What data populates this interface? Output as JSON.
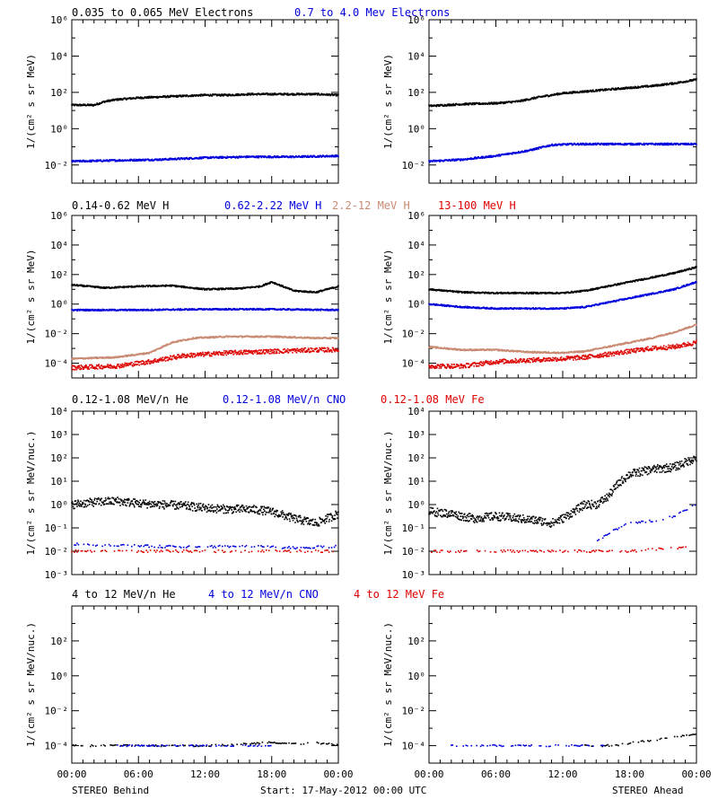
{
  "footer": {
    "left": "STEREO Behind",
    "center": "Start: 17-May-2012 00:00 UTC",
    "right": "STEREO Ahead"
  },
  "colors": {
    "black": "#000000",
    "blue": "#0000dd",
    "tan": "#c88a72",
    "red": "#dd0000"
  },
  "chart_data": [
    {
      "type": "scatter",
      "row": "electrons",
      "legend": [
        {
          "label": "0.035 to 0.065 MeV Electrons",
          "color": "#000000"
        },
        {
          "label": "0.7 to 4.0 Mev Electrons",
          "color": "#0000dd"
        }
      ],
      "ylabel": "1/(cm² s sr MeV)",
      "yscale": "log",
      "ylim_exp": [
        -3,
        6
      ],
      "yticks_exp": [
        -2,
        0,
        2,
        4,
        6
      ],
      "xlabel": "",
      "xticks": [
        "00:00",
        "06:00",
        "12:00",
        "18:00",
        "00:00"
      ],
      "xlim_hours": [
        0,
        24
      ],
      "panels": [
        {
          "name": "STEREO Behind",
          "series": [
            {
              "color": "#000000",
              "x": [
                0,
                2,
                3,
                4,
                6,
                8,
                10,
                12,
                14,
                16,
                18,
                20,
                22,
                24
              ],
              "y": [
                1.3,
                1.3,
                1.5,
                1.6,
                1.7,
                1.75,
                1.8,
                1.85,
                1.85,
                1.9,
                1.9,
                1.9,
                1.9,
                1.85
              ]
            },
            {
              "color": "#0000dd",
              "x": [
                0,
                4,
                8,
                12,
                16,
                20,
                24
              ],
              "y": [
                -1.8,
                -1.75,
                -1.7,
                -1.6,
                -1.55,
                -1.55,
                -1.5
              ]
            }
          ]
        },
        {
          "name": "STEREO Ahead",
          "series": [
            {
              "color": "#000000",
              "x": [
                0,
                3,
                6,
                8,
                10,
                12,
                14,
                16,
                18,
                20,
                22,
                24
              ],
              "y": [
                1.25,
                1.35,
                1.4,
                1.5,
                1.75,
                1.95,
                2.05,
                2.15,
                2.25,
                2.35,
                2.5,
                2.7
              ]
            },
            {
              "color": "#0000dd",
              "x": [
                0,
                3,
                6,
                9,
                11,
                13,
                16,
                20,
                24
              ],
              "y": [
                -1.8,
                -1.7,
                -1.5,
                -1.2,
                -0.9,
                -0.85,
                -0.85,
                -0.85,
                -0.85
              ]
            }
          ]
        }
      ]
    },
    {
      "type": "scatter",
      "row": "protons",
      "legend": [
        {
          "label": "0.14-0.62 MeV H",
          "color": "#000000"
        },
        {
          "label": "0.62-2.22 MeV H",
          "color": "#0000dd"
        },
        {
          "label": "2.2-12 MeV H",
          "color": "#c88a72"
        },
        {
          "label": "13-100 MeV H",
          "color": "#dd0000"
        }
      ],
      "ylabel": "1/(cm² s sr MeV)",
      "yscale": "log",
      "ylim_exp": [
        -5,
        6
      ],
      "yticks_exp": [
        -4,
        -2,
        0,
        2,
        4,
        6
      ],
      "xlabel": "",
      "xticks": [
        "00:00",
        "06:00",
        "12:00",
        "18:00",
        "00:00"
      ],
      "xlim_hours": [
        0,
        24
      ],
      "panels": [
        {
          "name": "STEREO Behind",
          "series": [
            {
              "color": "#000000",
              "x": [
                0,
                3,
                6,
                9,
                12,
                15,
                17,
                18,
                20,
                22,
                24
              ],
              "y": [
                1.3,
                1.1,
                1.2,
                1.25,
                1.0,
                1.05,
                1.2,
                1.5,
                0.9,
                0.8,
                1.2
              ]
            },
            {
              "color": "#0000dd",
              "x": [
                0,
                6,
                12,
                18,
                24
              ],
              "y": [
                -0.4,
                -0.4,
                -0.35,
                -0.35,
                -0.4
              ]
            },
            {
              "color": "#c88a72",
              "x": [
                0,
                4,
                7,
                9,
                11,
                14,
                18,
                22,
                24
              ],
              "y": [
                -3.7,
                -3.6,
                -3.3,
                -2.6,
                -2.3,
                -2.2,
                -2.2,
                -2.3,
                -2.3
              ]
            },
            {
              "color": "#dd0000",
              "x": [
                0,
                4,
                7,
                10,
                14,
                18,
                22,
                24
              ],
              "y": [
                -4.3,
                -4.2,
                -3.9,
                -3.5,
                -3.3,
                -3.2,
                -3.1,
                -3.1
              ]
            }
          ]
        },
        {
          "name": "STEREO Ahead",
          "series": [
            {
              "color": "#000000",
              "x": [
                0,
                3,
                6,
                9,
                12,
                14,
                16,
                18,
                20,
                22,
                24
              ],
              "y": [
                1.0,
                0.8,
                0.75,
                0.75,
                0.75,
                0.9,
                1.2,
                1.5,
                1.8,
                2.1,
                2.5
              ]
            },
            {
              "color": "#0000dd",
              "x": [
                0,
                3,
                6,
                9,
                12,
                14,
                16,
                18,
                20,
                22,
                24
              ],
              "y": [
                0.0,
                -0.2,
                -0.3,
                -0.3,
                -0.3,
                -0.2,
                0.1,
                0.4,
                0.7,
                1.0,
                1.5
              ]
            },
            {
              "color": "#c88a72",
              "x": [
                0,
                3,
                6,
                9,
                12,
                14,
                16,
                18,
                20,
                22,
                24
              ],
              "y": [
                -2.9,
                -3.1,
                -3.1,
                -3.25,
                -3.3,
                -3.2,
                -2.9,
                -2.6,
                -2.3,
                -1.9,
                -1.4
              ]
            },
            {
              "color": "#dd0000",
              "x": [
                0,
                3,
                6,
                9,
                12,
                14,
                16,
                18,
                20,
                22,
                24
              ],
              "y": [
                -4.2,
                -4.2,
                -3.9,
                -3.8,
                -3.7,
                -3.6,
                -3.4,
                -3.2,
                -3.0,
                -2.9,
                -2.6
              ]
            }
          ]
        }
      ]
    },
    {
      "type": "scatter",
      "row": "heavy-low",
      "legend": [
        {
          "label": "0.12-1.08 MeV/n He",
          "color": "#000000"
        },
        {
          "label": "0.12-1.08 MeV/n CNO",
          "color": "#0000dd"
        },
        {
          "label": "0.12-1.08 MeV Fe",
          "color": "#dd0000"
        }
      ],
      "ylabel": "1/(cm² s sr MeV/nuc.)",
      "yscale": "log",
      "ylim_exp": [
        -3,
        4
      ],
      "yticks_exp": [
        -3,
        -2,
        -1,
        0,
        1,
        2,
        3,
        4
      ],
      "xlabel": "",
      "xticks": [
        "00:00",
        "06:00",
        "12:00",
        "18:00",
        "00:00"
      ],
      "xlim_hours": [
        0,
        24
      ],
      "panels": [
        {
          "name": "STEREO Behind",
          "series": [
            {
              "color": "#000000",
              "x": [
                0,
                2,
                4,
                6,
                8,
                10,
                12,
                14,
                16,
                18,
                20,
                22,
                24
              ],
              "y": [
                0.0,
                0.1,
                0.15,
                0.05,
                0.0,
                -0.05,
                -0.15,
                -0.2,
                -0.2,
                -0.3,
                -0.6,
                -0.8,
                -0.4
              ]
            },
            {
              "color": "#0000dd",
              "x": [
                0,
                4,
                8,
                12,
                16,
                20,
                24
              ],
              "y": [
                -1.7,
                -1.75,
                -1.8,
                -1.8,
                -1.8,
                -1.85,
                -1.8
              ]
            },
            {
              "color": "#dd0000",
              "x": [
                0,
                6,
                12,
                18,
                24
              ],
              "y": [
                -2.0,
                -2.0,
                -2.0,
                -2.0,
                -2.0
              ]
            }
          ]
        },
        {
          "name": "STEREO Ahead",
          "series": [
            {
              "color": "#000000",
              "x": [
                0,
                2,
                4,
                6,
                8,
                10,
                11,
                12,
                13,
                14,
                15,
                16,
                17,
                18,
                20,
                22,
                24
              ],
              "y": [
                -0.3,
                -0.4,
                -0.6,
                -0.5,
                -0.6,
                -0.7,
                -0.8,
                -0.6,
                -0.3,
                0.0,
                0.0,
                0.3,
                0.9,
                1.3,
                1.5,
                1.6,
                2.0
              ]
            },
            {
              "color": "#0000dd",
              "x": [
                15,
                16,
                17,
                18,
                20,
                22,
                24
              ],
              "y": [
                -1.6,
                -1.3,
                -1.0,
                -0.8,
                -0.7,
                -0.5,
                0.0
              ]
            },
            {
              "color": "#dd0000",
              "x": [
                0,
                6,
                12,
                18,
                24
              ],
              "y": [
                -2.0,
                -2.0,
                -2.0,
                -2.0,
                -1.8
              ]
            }
          ]
        }
      ]
    },
    {
      "type": "scatter",
      "row": "heavy-high",
      "legend": [
        {
          "label": "4 to 12 MeV/n He",
          "color": "#000000"
        },
        {
          "label": "4 to 12 MeV/n CNO",
          "color": "#0000dd"
        },
        {
          "label": "4 to 12 MeV Fe",
          "color": "#dd0000"
        }
      ],
      "ylabel": "1/(cm² s sr MeV/nuc.)",
      "yscale": "log",
      "ylim_exp": [
        -5,
        4
      ],
      "yticks_exp": [
        -4,
        -2,
        0,
        2
      ],
      "xlabel": "",
      "xticks": [
        "00:00",
        "06:00",
        "12:00",
        "18:00",
        "00:00"
      ],
      "xlim_hours": [
        0,
        24
      ],
      "panels": [
        {
          "name": "STEREO Behind",
          "series": [
            {
              "color": "#000000",
              "x": [
                0,
                4,
                8,
                12,
                14,
                16,
                18,
                20,
                22,
                24
              ],
              "y": [
                -4.0,
                -4.0,
                -4.0,
                -4.0,
                -3.95,
                -3.9,
                -3.8,
                -3.9,
                -3.85,
                -3.95
              ]
            },
            {
              "color": "#0000dd",
              "x": [
                4,
                12,
                18
              ],
              "y": [
                -4.0,
                -4.0,
                -4.0
              ]
            }
          ]
        },
        {
          "name": "STEREO Ahead",
          "series": [
            {
              "color": "#000000",
              "x": [
                14,
                16,
                17,
                18,
                19,
                20,
                21,
                22,
                23,
                24
              ],
              "y": [
                -4.0,
                -4.0,
                -3.95,
                -3.85,
                -3.75,
                -3.7,
                -3.6,
                -3.5,
                -3.4,
                -3.3
              ]
            },
            {
              "color": "#0000dd",
              "x": [
                2,
                4,
                8,
                16
              ],
              "y": [
                -4.0,
                -4.0,
                -4.0,
                -4.0
              ]
            }
          ]
        }
      ]
    }
  ]
}
